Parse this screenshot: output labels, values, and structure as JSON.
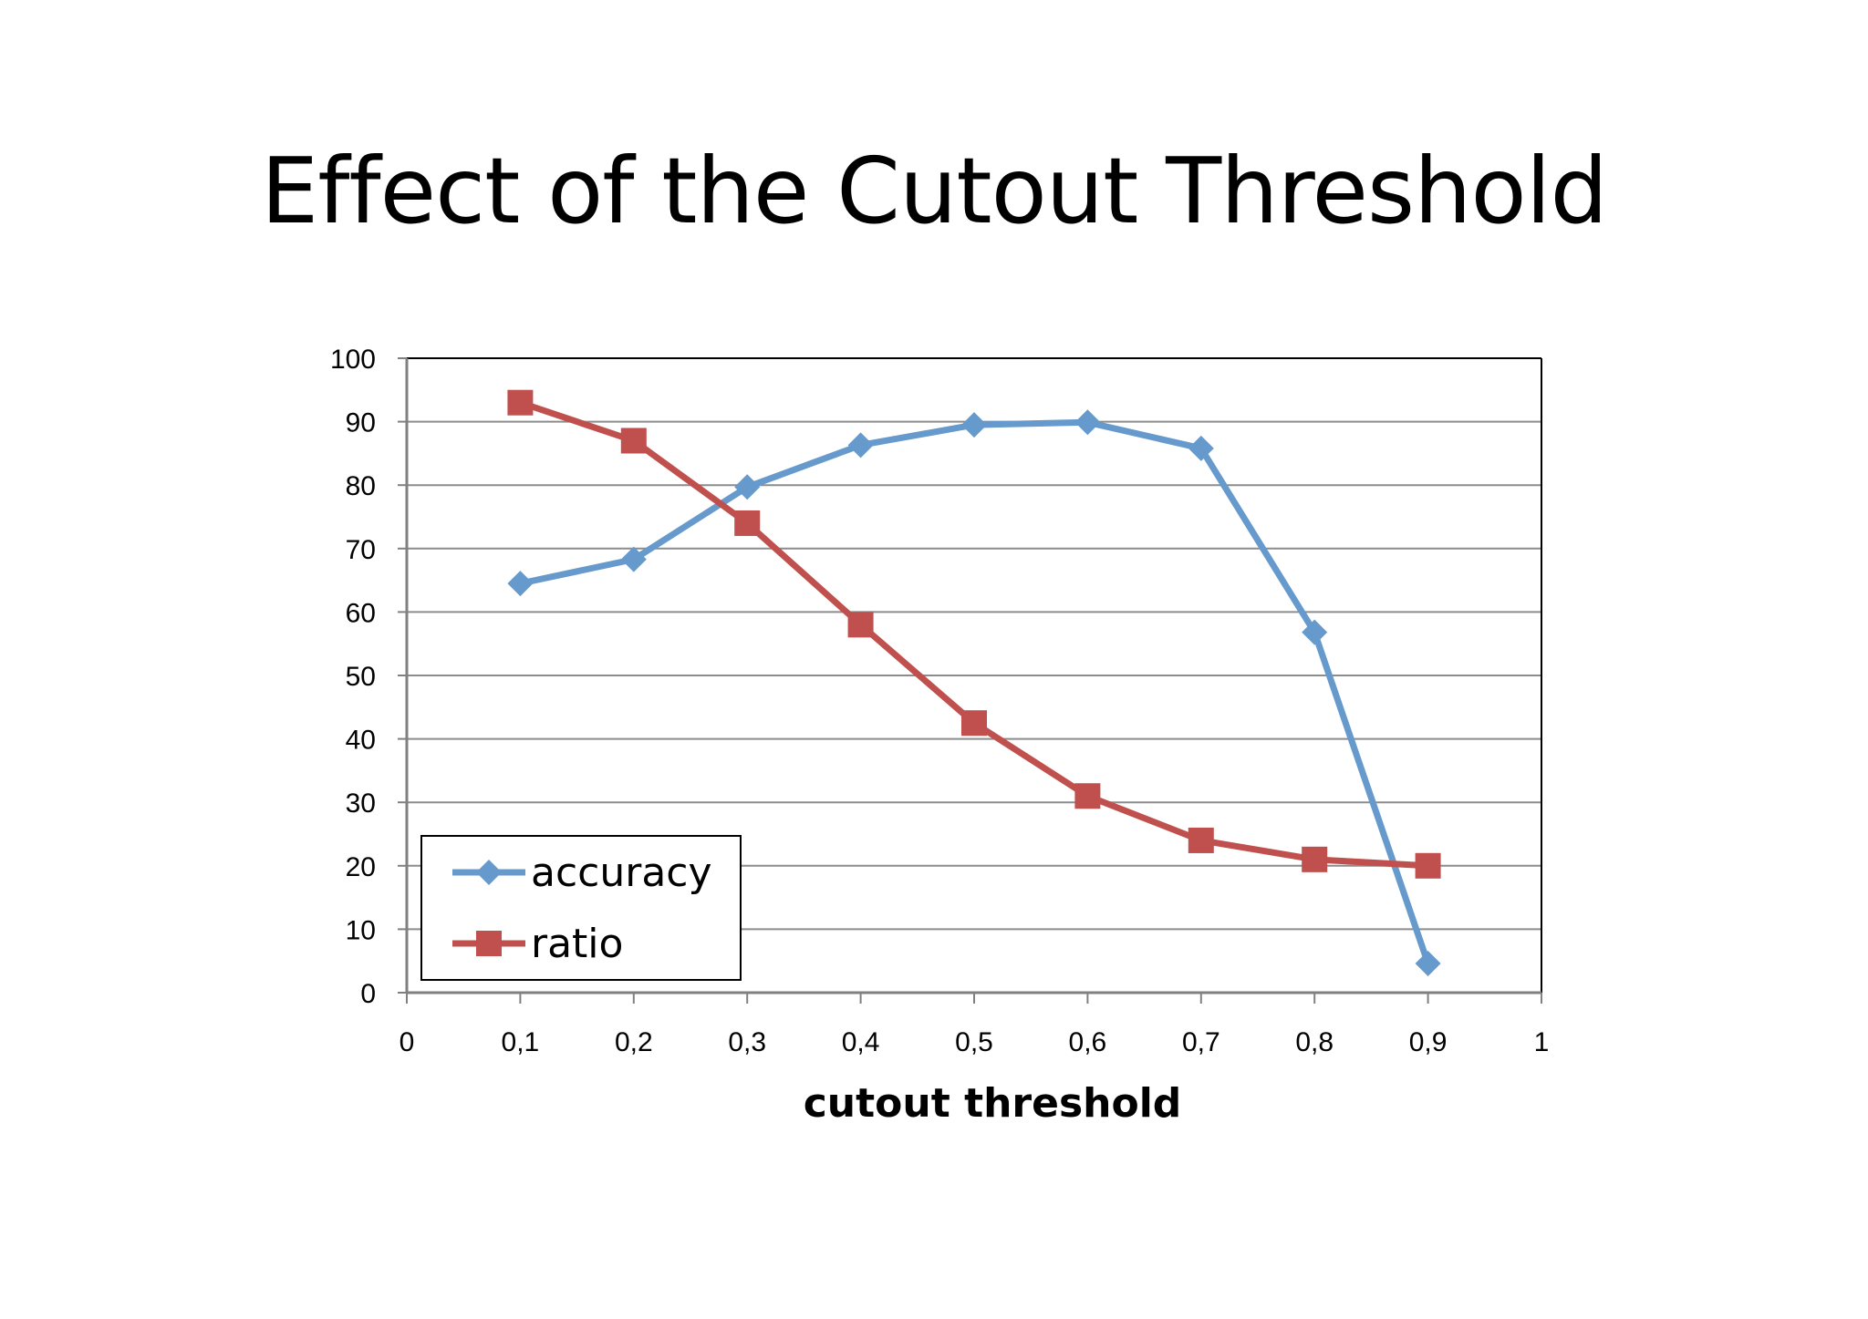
{
  "slide": {
    "title": "Effect of the Cutout Threshold"
  },
  "chart_data": {
    "type": "line",
    "title": "",
    "xlabel": "cutout threshold",
    "ylabel": "",
    "x": [
      0.1,
      0.2,
      0.3,
      0.4,
      0.5,
      0.6,
      0.7,
      0.8,
      0.9
    ],
    "xlim": [
      0,
      1
    ],
    "ylim": [
      0,
      100
    ],
    "x_ticks": [
      "0",
      "0,1",
      "0,2",
      "0,3",
      "0,4",
      "0,5",
      "0,6",
      "0,7",
      "0,8",
      "0,9",
      "1"
    ],
    "x_tick_values": [
      0,
      0.1,
      0.2,
      0.3,
      0.4,
      0.5,
      0.6,
      0.7,
      0.8,
      0.9,
      1
    ],
    "y_ticks": [
      "0",
      "10",
      "20",
      "30",
      "40",
      "50",
      "60",
      "70",
      "80",
      "90",
      "100"
    ],
    "y_tick_values": [
      0,
      10,
      20,
      30,
      40,
      50,
      60,
      70,
      80,
      90,
      100
    ],
    "grid": "horizontal",
    "legend_position": "bottom-left",
    "series": [
      {
        "name": "accuracy",
        "marker": "diamond",
        "color": "#6699cc",
        "values": [
          64.5,
          68.3,
          79.7,
          86.3,
          89.5,
          89.9,
          85.8,
          56.8,
          4.6
        ]
      },
      {
        "name": "ratio",
        "marker": "square",
        "color": "#c0504d",
        "values": [
          93,
          87,
          74,
          58,
          42.5,
          31,
          24,
          21,
          20
        ]
      }
    ]
  }
}
